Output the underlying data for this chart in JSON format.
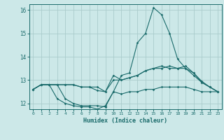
{
  "title": "",
  "xlabel": "Humidex (Indice chaleur)",
  "background_color": "#cce8e8",
  "grid_color": "#aacccc",
  "line_color": "#1a6b6b",
  "xlim": [
    -0.5,
    23.5
  ],
  "ylim": [
    11.75,
    16.25
  ],
  "yticks": [
    12,
    13,
    14,
    15,
    16
  ],
  "xticks": [
    0,
    1,
    2,
    3,
    4,
    5,
    6,
    7,
    8,
    9,
    10,
    11,
    12,
    13,
    14,
    15,
    16,
    17,
    18,
    19,
    20,
    21,
    22,
    23
  ],
  "series": {
    "line1": [
      12.6,
      12.8,
      12.8,
      12.8,
      12.8,
      12.8,
      12.7,
      12.7,
      12.7,
      12.5,
      13.2,
      13.0,
      13.1,
      13.2,
      13.4,
      13.5,
      13.5,
      13.6,
      13.5,
      13.5,
      13.3,
      12.9,
      12.7,
      12.5
    ],
    "line2": [
      12.6,
      12.8,
      12.8,
      12.8,
      12.2,
      12.0,
      11.9,
      11.9,
      11.9,
      11.85,
      12.5,
      12.4,
      12.5,
      12.5,
      12.6,
      12.6,
      12.7,
      12.7,
      12.7,
      12.7,
      12.6,
      12.5,
      12.5,
      12.5
    ],
    "line3": [
      12.6,
      12.8,
      12.8,
      12.2,
      12.0,
      11.9,
      11.85,
      11.85,
      11.75,
      11.9,
      12.5,
      13.2,
      13.3,
      14.6,
      15.0,
      16.1,
      15.8,
      15.0,
      13.9,
      13.5,
      13.2,
      12.9,
      12.7,
      12.5
    ],
    "line4": [
      12.6,
      12.8,
      12.8,
      12.8,
      12.8,
      12.8,
      12.7,
      12.7,
      12.55,
      12.5,
      13.0,
      13.0,
      13.1,
      13.2,
      13.4,
      13.5,
      13.6,
      13.5,
      13.5,
      13.6,
      13.3,
      12.95,
      12.7,
      12.5
    ]
  }
}
